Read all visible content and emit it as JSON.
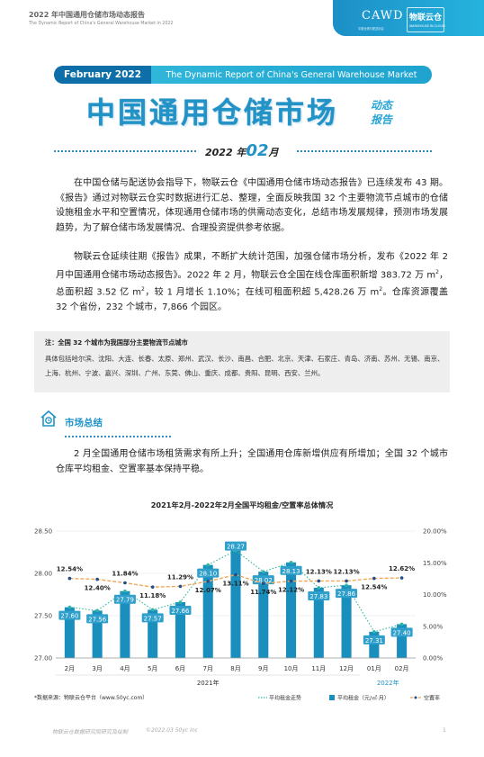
{
  "header": {
    "title": "2022 年中国通用仓储市场动态报告",
    "subtitle": "The Dynamic Report of China's General Warehouse Market in  2022",
    "cawd": "CAWD",
    "cawd_sub": "中国仓储与配送协会",
    "logo_text": "物联云仓",
    "logo_sub": "WAREHOUSE IN CLOUD"
  },
  "banner": {
    "month": "February 2022",
    "tagline": "The Dynamic Report of China's General Warehouse Market",
    "main_title": "中国通用仓储市场",
    "side_title_1": "动态",
    "side_title_2": "报告",
    "date_year": "2022 年",
    "date_month": "02",
    "date_suffix": "月"
  },
  "body": {
    "para1": "在中国仓储与配送协会指导下，物联云仓《中国通用仓储市场动态报告》已连续发布 43 期。《报告》通过对物联云仓实时数据进行汇总、整理，全面反映我国 32 个主要物流节点城市的仓储设施租金水平和空置情况，体现通用仓储市场的供需动态变化，总结市场发展规律，预测市场发展趋势，为了解仓储市场发展情况、合理投资提供参考依据。",
    "para2a": "物联云仓延续往期《报告》成果，不断扩大统计范围，加强仓储市场分析，发布《2022 年 2 月中国通用仓储市场动态报告》。2022 年 2 月，物联云仓全国在线仓库面积新增 383.72 万 m",
    "para2b": "，总面积超 3.52 亿 m",
    "para2c": "，较 1 月增长 1.10%；在线可租面积超 5,428.26 万 m",
    "para2d": "。仓库资源覆盖 32 个省份，232 个城市，7,866 个园区。",
    "sup": "2",
    "note_heading": "注：全国 32 个城市为我国部分主要物流节点城市",
    "note_text": "具体包括哈尔滨、沈阳、大连、长春、太原、郑州、武汉、长沙、南昌、合肥、北京、天津、石家庄、青岛、济南、苏州、无锡、南京、上海、杭州、宁波、嘉兴、深圳、广州、东莞、佛山、重庆、成都、贵阳、昆明、西安、兰州。",
    "section_title": "市场总结",
    "summary": "2 月全国通用仓储市场租赁需求有所上升；全国通用仓库新增供应有所增加；全国 32 个城市仓库平均租金、空置率基本保持平稳。"
  },
  "chart_data": {
    "type": "bar",
    "title": "2021年2月-2022年2月全国平均租金/空置率总体情况",
    "categories": [
      "2月",
      "3月",
      "4月",
      "5月",
      "6月",
      "7月",
      "8月",
      "9月",
      "10月",
      "11月",
      "12月",
      "01月",
      "02月"
    ],
    "year_labels": [
      "2021年",
      "2022年"
    ],
    "left_axis": {
      "ticks": [
        "28.50",
        "28.00",
        "27.50",
        "27.00"
      ],
      "ylim": [
        27.0,
        28.5
      ]
    },
    "right_axis": {
      "ticks": [
        "20.00%",
        "15.00%",
        "10.00%",
        "5.00%",
        "0.00%"
      ],
      "ylim": [
        0,
        20
      ]
    },
    "series": [
      {
        "name": "平均租金（元/㎡·月）",
        "kind": "bar",
        "values": [
          27.6,
          27.56,
          27.79,
          27.57,
          27.66,
          28.1,
          28.27,
          28.02,
          28.13,
          27.83,
          27.86,
          27.31,
          27.4
        ],
        "labels": [
          "27.60",
          "27.56",
          "27.79",
          "27.57",
          "27.66",
          "28.10",
          "28.27",
          "28.02",
          "28.13",
          "27.83",
          "27.86",
          "27.31",
          "27.40"
        ],
        "color": "#1a8fbe"
      },
      {
        "name": "平均租金走势",
        "kind": "dotted-line",
        "values": [
          27.6,
          27.56,
          27.79,
          27.57,
          27.66,
          28.1,
          28.27,
          28.02,
          28.13,
          27.83,
          27.86,
          27.31,
          27.4
        ],
        "color": "#2fb5a3"
      },
      {
        "name": "空置率",
        "kind": "line",
        "values": [
          12.54,
          12.4,
          11.84,
          11.18,
          11.29,
          12.07,
          13.11,
          11.74,
          12.12,
          12.13,
          12.13,
          12.54,
          12.62
        ],
        "labels": [
          "12.54%",
          "12.40%",
          "11.84%",
          "11.18%",
          "11.29%",
          "12.07%",
          "13.11%",
          "11.74%",
          "12.12%",
          "12.13%",
          "12.13%",
          "12.54%",
          "12.62%"
        ],
        "color": "#f0a85a",
        "marker_color": "#1f4e8a"
      }
    ],
    "legend": [
      "平均租金走势",
      "平均租金（元/㎡·月）",
      "空置率"
    ],
    "legend_position": "bottom-right"
  },
  "footer": {
    "source": "*数据来源：物联云仓平台（www.50yc.com）",
    "org": "物联云仓数据研究院研究及绘制",
    "copyright": "©2022.03 50yc Inc",
    "page": "1"
  }
}
